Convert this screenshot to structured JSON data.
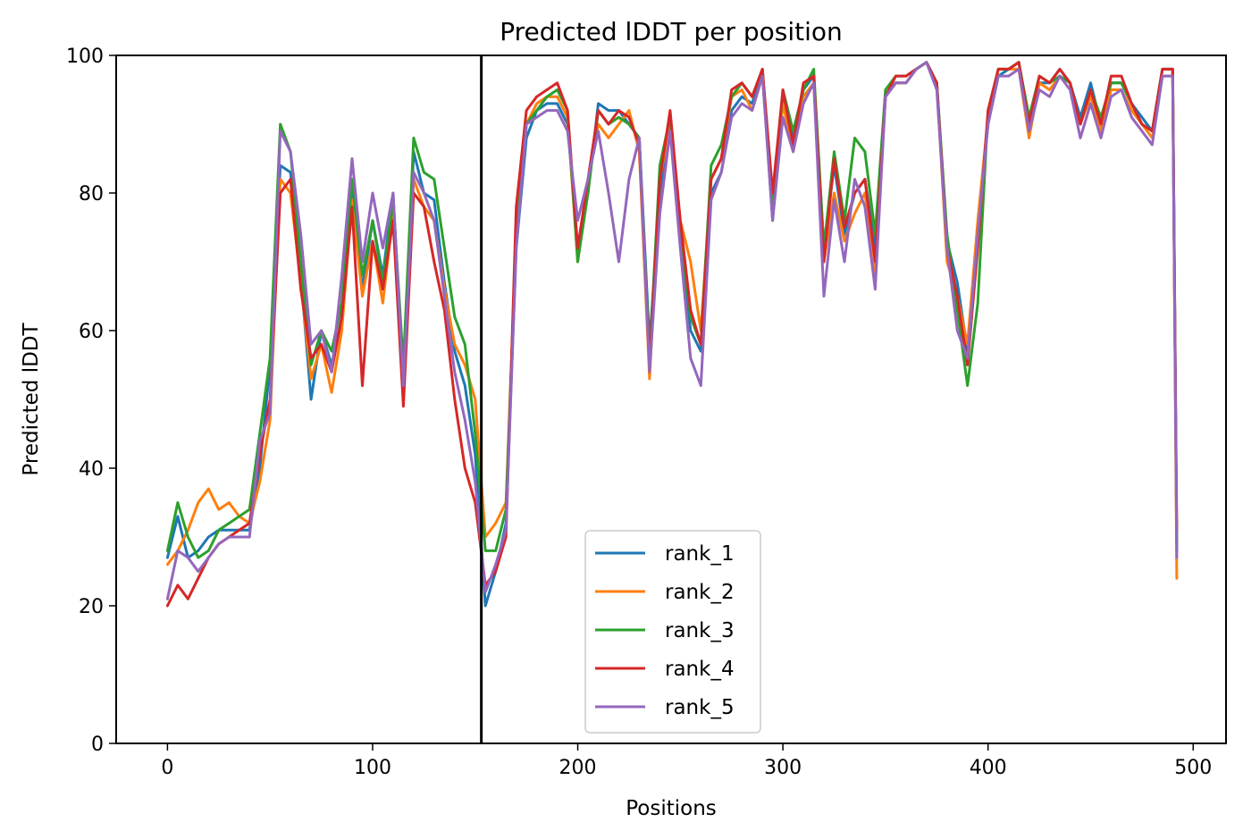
{
  "chart_data": {
    "type": "line",
    "title": "Predicted lDDT per position",
    "xlabel": "Positions",
    "ylabel": "Predicted lDDT",
    "xlim": [
      -25,
      516
    ],
    "ylim": [
      0,
      100
    ],
    "xticks": [
      0,
      100,
      200,
      300,
      400,
      500
    ],
    "yticks": [
      0,
      20,
      40,
      60,
      80,
      100
    ],
    "grid": false,
    "legend_position": "lower center",
    "vline_x": 153,
    "x": [
      0,
      5,
      10,
      15,
      20,
      25,
      30,
      35,
      40,
      45,
      50,
      55,
      60,
      65,
      70,
      75,
      80,
      85,
      90,
      95,
      100,
      105,
      110,
      115,
      120,
      125,
      130,
      135,
      140,
      145,
      150,
      155,
      160,
      165,
      170,
      175,
      180,
      185,
      190,
      195,
      200,
      205,
      210,
      215,
      220,
      225,
      230,
      235,
      240,
      245,
      250,
      255,
      260,
      265,
      270,
      275,
      280,
      285,
      290,
      295,
      300,
      305,
      310,
      315,
      320,
      325,
      330,
      335,
      340,
      345,
      350,
      355,
      360,
      365,
      370,
      375,
      380,
      385,
      390,
      395,
      400,
      405,
      410,
      415,
      420,
      425,
      430,
      435,
      440,
      445,
      450,
      455,
      460,
      465,
      470,
      475,
      480,
      485,
      490,
      492
    ],
    "series": [
      {
        "name": "rank_1",
        "color": "#1f77b4",
        "values": [
          27,
          33,
          27,
          28,
          30,
          31,
          31,
          31,
          31,
          40,
          55,
          84,
          83,
          68,
          50,
          60,
          55,
          62,
          80,
          66,
          76,
          68,
          80,
          52,
          86,
          80,
          79,
          67,
          57,
          52,
          42,
          20,
          25,
          32,
          72,
          88,
          92,
          93,
          93,
          90,
          72,
          80,
          93,
          92,
          92,
          90,
          88,
          58,
          80,
          91,
          75,
          60,
          57,
          80,
          83,
          92,
          94,
          93,
          98,
          76,
          94,
          88,
          95,
          97,
          72,
          84,
          74,
          80,
          82,
          72,
          94,
          96,
          96,
          98,
          99,
          96,
          73,
          67,
          57,
          75,
          90,
          97,
          98,
          99,
          90,
          96,
          96,
          98,
          96,
          91,
          96,
          90,
          96,
          96,
          93,
          91,
          89,
          98,
          98,
          28
        ]
      },
      {
        "name": "rank_2",
        "color": "#ff7f0e",
        "values": [
          26,
          28,
          31,
          35,
          37,
          34,
          35,
          33,
          32,
          38,
          47,
          82,
          80,
          67,
          53,
          58,
          51,
          60,
          79,
          65,
          73,
          64,
          77,
          50,
          82,
          78,
          76,
          66,
          58,
          55,
          50,
          30,
          32,
          35,
          73,
          90,
          93,
          94,
          94,
          91,
          70,
          82,
          90,
          88,
          90,
          92,
          86,
          53,
          82,
          90,
          76,
          70,
          60,
          82,
          85,
          94,
          95,
          92,
          97,
          78,
          93,
          86,
          94,
          96,
          70,
          80,
          73,
          77,
          80,
          68,
          94,
          96,
          96,
          98,
          99,
          96,
          70,
          65,
          58,
          76,
          91,
          98,
          98,
          98,
          88,
          96,
          95,
          97,
          96,
          90,
          94,
          89,
          95,
          95,
          92,
          90,
          88,
          97,
          97,
          24
        ]
      },
      {
        "name": "rank_3",
        "color": "#2ca02c",
        "values": [
          28,
          35,
          30,
          27,
          28,
          31,
          32,
          33,
          34,
          45,
          56,
          90,
          86,
          70,
          55,
          60,
          57,
          64,
          82,
          68,
          76,
          67,
          79,
          55,
          88,
          83,
          82,
          72,
          62,
          58,
          45,
          28,
          28,
          34,
          74,
          90,
          92,
          94,
          95,
          92,
          70,
          80,
          92,
          90,
          91,
          90,
          88,
          56,
          84,
          91,
          74,
          62,
          58,
          84,
          87,
          94,
          96,
          94,
          98,
          78,
          95,
          89,
          95,
          98,
          72,
          86,
          76,
          88,
          86,
          74,
          95,
          97,
          97,
          98,
          99,
          96,
          74,
          63,
          52,
          64,
          92,
          98,
          98,
          99,
          91,
          97,
          96,
          97,
          96,
          90,
          95,
          91,
          96,
          96,
          93,
          90,
          89,
          98,
          98,
          29
        ]
      },
      {
        "name": "rank_4",
        "color": "#d62728",
        "values": [
          20,
          23,
          21,
          24,
          27,
          29,
          30,
          31,
          32,
          42,
          50,
          80,
          82,
          66,
          56,
          58,
          54,
          62,
          78,
          52,
          73,
          66,
          76,
          49,
          80,
          78,
          70,
          63,
          50,
          40,
          35,
          23,
          25,
          30,
          78,
          92,
          94,
          95,
          96,
          92,
          72,
          82,
          92,
          90,
          92,
          91,
          87,
          55,
          82,
          92,
          76,
          63,
          58,
          82,
          85,
          95,
          96,
          94,
          98,
          80,
          95,
          87,
          96,
          97,
          70,
          85,
          75,
          80,
          82,
          70,
          94,
          97,
          97,
          98,
          99,
          96,
          72,
          65,
          55,
          72,
          92,
          98,
          98,
          99,
          90,
          97,
          96,
          98,
          96,
          90,
          95,
          90,
          97,
          97,
          93,
          90,
          89,
          98,
          98,
          31
        ]
      },
      {
        "name": "rank_5",
        "color": "#9467bd",
        "values": [
          21,
          28,
          27,
          25,
          27,
          29,
          30,
          30,
          30,
          44,
          48,
          89,
          86,
          74,
          58,
          60,
          54,
          68,
          85,
          70,
          80,
          72,
          80,
          52,
          83,
          80,
          76,
          65,
          54,
          47,
          38,
          22,
          26,
          31,
          72,
          90,
          91,
          92,
          92,
          89,
          76,
          82,
          89,
          80,
          70,
          82,
          88,
          54,
          77,
          89,
          72,
          56,
          52,
          79,
          83,
          91,
          93,
          92,
          97,
          76,
          91,
          86,
          93,
          96,
          65,
          79,
          70,
          82,
          78,
          66,
          94,
          96,
          96,
          98,
          99,
          95,
          72,
          60,
          56,
          74,
          90,
          97,
          97,
          98,
          89,
          95,
          94,
          97,
          95,
          88,
          93,
          88,
          94,
          95,
          91,
          89,
          87,
          97,
          97,
          27
        ]
      }
    ]
  }
}
